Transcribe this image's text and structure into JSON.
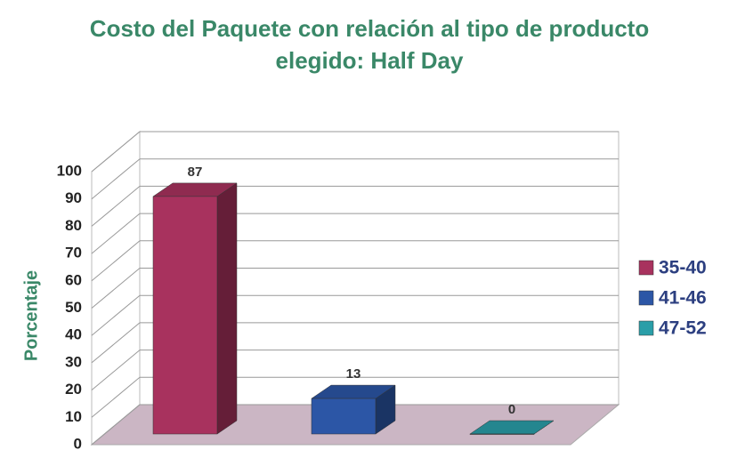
{
  "chart_data": {
    "type": "bar3d",
    "title": "Costo del Paquete con relación al tipo de producto elegido:  Half Day",
    "ylabel": "Porcentaje",
    "series": [
      {
        "name": "35-40",
        "color": "#a8325e",
        "values": [
          87
        ]
      },
      {
        "name": "41-46",
        "color": "#2c56a6",
        "values": [
          13
        ]
      },
      {
        "name": "47-52",
        "color": "#2a9ea8",
        "values": [
          0
        ]
      }
    ],
    "ylim": [
      0,
      100
    ],
    "yticks": [
      0,
      10,
      20,
      30,
      40,
      50,
      60,
      70,
      80,
      90,
      100
    ],
    "grid": true,
    "legend": "right"
  }
}
